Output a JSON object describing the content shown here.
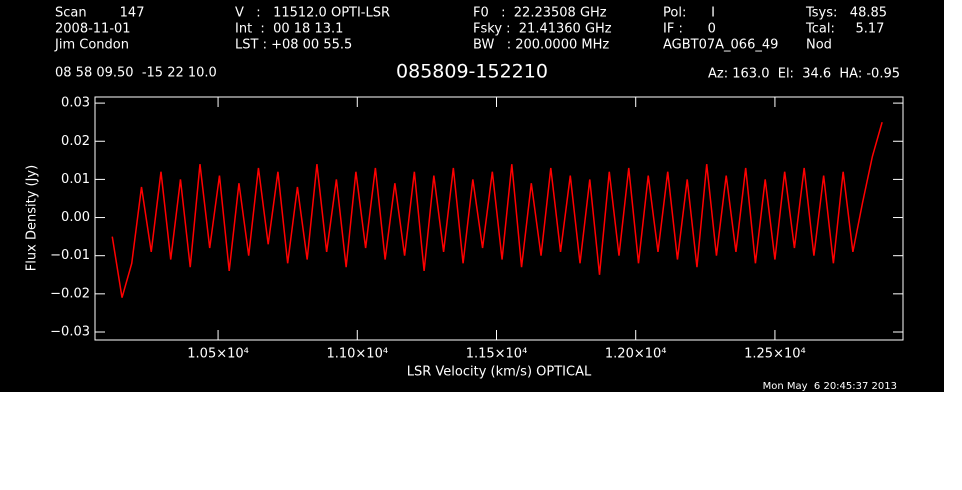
{
  "chart_data": {
    "type": "line",
    "title": "085809-152210",
    "header": [
      [
        "Scan        147",
        "2008-11-01",
        "Jim Condon"
      ],
      [
        "V   :   11512.0 OPTI-LSR",
        "Int  :  00 18 13.1",
        "LST : +08 00 55.5"
      ],
      [
        "F0   :  22.23508 GHz",
        "Fsky :  21.41360 GHz",
        "BW   : 200.0000 MHz"
      ],
      [
        "Pol:      I",
        "IF :      0",
        "AGBT07A_066_49"
      ],
      [
        "Tsys:   48.85",
        "Tcal:     5.17",
        "Nod"
      ]
    ],
    "position": "08 58 09.50  -15 22 10.0",
    "pointing": "Az: 163.0  El:  34.6  HA: -0.95",
    "timestamp": "Mon May  6 20:45:37 2013",
    "x_label": "LSR Velocity (km/s) OPTICAL",
    "y_label": "Flux Density (Jy)",
    "color": "#ff0000",
    "xlim": [
      10058,
      12960
    ],
    "ylim": [
      -0.0321,
      0.0316
    ],
    "xticks": [
      {
        "value": 10500,
        "label": "1.05×10⁴"
      },
      {
        "value": 11000,
        "label": "1.10×10⁴"
      },
      {
        "value": 11500,
        "label": "1.15×10⁴"
      },
      {
        "value": 12000,
        "label": "1.20×10⁴"
      },
      {
        "value": 12500,
        "label": "1.25×10⁴"
      }
    ],
    "yticks": [
      {
        "value": -0.03,
        "label": "−0.03"
      },
      {
        "value": -0.02,
        "label": "−0.02"
      },
      {
        "value": -0.01,
        "label": "−0.01"
      },
      {
        "value": 0,
        "label": "0.00"
      },
      {
        "value": 0.01,
        "label": "0.01"
      },
      {
        "value": 0.02,
        "label": "0.02"
      },
      {
        "value": 0.03,
        "label": "0.03"
      }
    ],
    "x": [
      10120,
      10155,
      10190,
      10225,
      10260,
      10295,
      10330,
      10365,
      10400,
      10435,
      10470,
      10505,
      10540,
      10575,
      10610,
      10645,
      10680,
      10715,
      10750,
      10785,
      10820,
      10855,
      10890,
      10925,
      10960,
      10995,
      11030,
      11065,
      11100,
      11135,
      11170,
      11205,
      11240,
      11275,
      11310,
      11345,
      11380,
      11415,
      11450,
      11485,
      11520,
      11555,
      11590,
      11625,
      11660,
      11695,
      11730,
      11765,
      11800,
      11835,
      11870,
      11905,
      11940,
      11975,
      12010,
      12045,
      12080,
      12115,
      12150,
      12185,
      12220,
      12255,
      12290,
      12325,
      12360,
      12395,
      12430,
      12465,
      12500,
      12535,
      12570,
      12605,
      12640,
      12675,
      12710,
      12745,
      12780,
      12815,
      12850,
      12885
    ],
    "values": [
      -0.005,
      -0.021,
      -0.012,
      0.008,
      -0.009,
      0.012,
      -0.011,
      0.01,
      -0.013,
      0.014,
      -0.008,
      0.011,
      -0.014,
      0.009,
      -0.01,
      0.013,
      -0.007,
      0.012,
      -0.012,
      0.008,
      -0.011,
      0.014,
      -0.009,
      0.01,
      -0.013,
      0.012,
      -0.008,
      0.013,
      -0.011,
      0.009,
      -0.01,
      0.012,
      -0.014,
      0.011,
      -0.009,
      0.013,
      -0.012,
      0.01,
      -0.008,
      0.012,
      -0.011,
      0.014,
      -0.013,
      0.009,
      -0.01,
      0.013,
      -0.009,
      0.011,
      -0.012,
      0.01,
      -0.015,
      0.012,
      -0.01,
      0.013,
      -0.012,
      0.011,
      -0.009,
      0.012,
      -0.011,
      0.01,
      -0.013,
      0.014,
      -0.01,
      0.011,
      -0.009,
      0.013,
      -0.012,
      0.01,
      -0.011,
      0.012,
      -0.008,
      0.013,
      -0.01,
      0.011,
      -0.012,
      0.012,
      -0.009,
      0.004,
      0.016,
      0.025
    ]
  }
}
